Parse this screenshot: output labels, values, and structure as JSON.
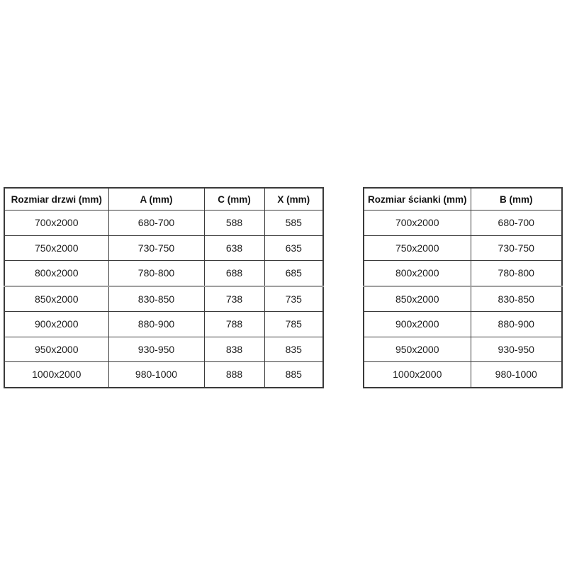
{
  "colors": {
    "background": "#ffffff",
    "border": "#3a3a3a",
    "seam_border": "#9e9e9e",
    "text": "#1c1c1c"
  },
  "door_table": {
    "headers": [
      "Rozmiar drzwi (mm)",
      "A (mm)",
      "C (mm)",
      "X (mm)"
    ],
    "rows": [
      [
        "700x2000",
        "680-700",
        "588",
        "585"
      ],
      [
        "750x2000",
        "730-750",
        "638",
        "635"
      ],
      [
        "800x2000",
        "780-800",
        "688",
        "685"
      ],
      [
        "850x2000",
        "830-850",
        "738",
        "735"
      ],
      [
        "900x2000",
        "880-900",
        "788",
        "785"
      ],
      [
        "950x2000",
        "930-950",
        "838",
        "835"
      ],
      [
        "1000x2000",
        "980-1000",
        "888",
        "885"
      ]
    ]
  },
  "wall_table": {
    "headers": [
      "Rozmiar ścianki (mm)",
      "B (mm)"
    ],
    "rows": [
      [
        "700x2000",
        "680-700"
      ],
      [
        "750x2000",
        "730-750"
      ],
      [
        "800x2000",
        "780-800"
      ],
      [
        "850x2000",
        "830-850"
      ],
      [
        "900x2000",
        "880-900"
      ],
      [
        "950x2000",
        "930-950"
      ],
      [
        "1000x2000",
        "980-1000"
      ]
    ]
  }
}
